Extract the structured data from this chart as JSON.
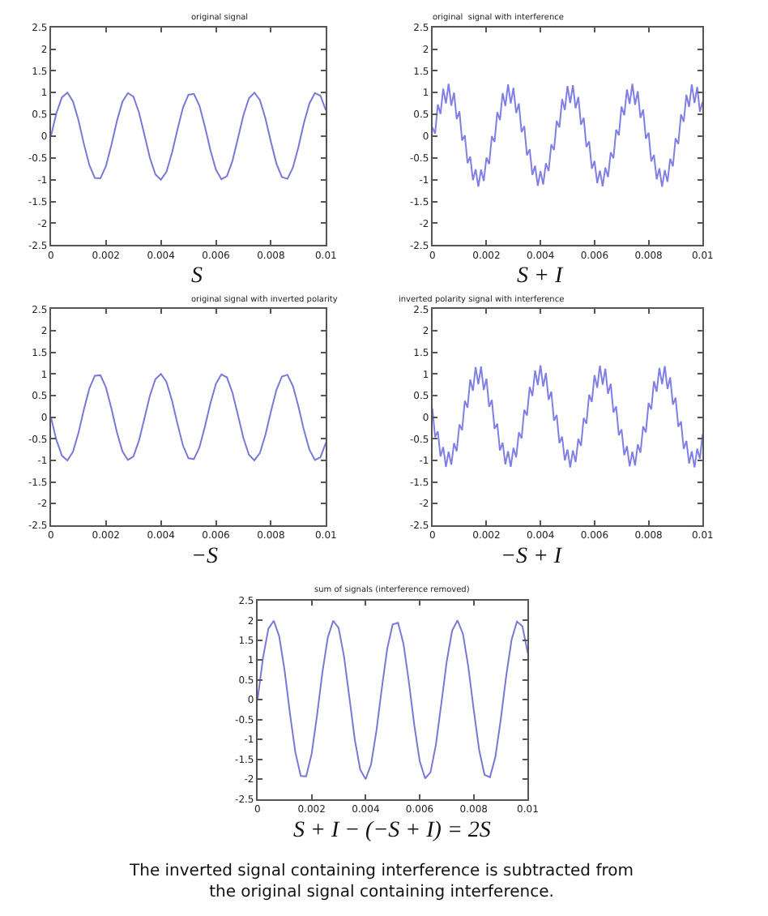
{
  "chart_data": [
    {
      "type": "line",
      "title": "original signal",
      "xlabel": "S",
      "xlim": [
        0,
        0.01
      ],
      "ylim": [
        -2.5,
        2.5
      ],
      "xticks": [
        0,
        0.002,
        0.004,
        0.006,
        0.008,
        0.01
      ],
      "yticks": [
        -2.5,
        -2,
        -1.5,
        -1,
        -0.5,
        0,
        0.5,
        1,
        1.5,
        2,
        2.5
      ],
      "x": [
        0,
        0.0002,
        0.0004,
        0.0006,
        0.0008,
        0.001,
        0.0012,
        0.0014,
        0.0016,
        0.0018,
        0.002,
        0.0022,
        0.0024,
        0.0026,
        0.0028,
        0.003,
        0.0032,
        0.0034,
        0.0036,
        0.0038,
        0.004,
        0.0042,
        0.0044,
        0.0046,
        0.0048,
        0.005,
        0.0052,
        0.0054,
        0.0056,
        0.0058,
        0.006,
        0.0062,
        0.0064,
        0.0066,
        0.0068,
        0.007,
        0.0072,
        0.0074,
        0.0076,
        0.0078,
        0.008,
        0.0082,
        0.0084,
        0.0086,
        0.0088,
        0.009,
        0.0092,
        0.0094,
        0.0096,
        0.0098,
        0.01
      ],
      "series": [
        {
          "color": "#7878d8",
          "values": [
            0,
            0.53,
            0.89,
            1.0,
            0.8,
            0.37,
            -0.18,
            -0.67,
            -0.96,
            -0.97,
            -0.69,
            -0.2,
            0.35,
            0.79,
            0.99,
            0.91,
            0.55,
            0.03,
            -0.5,
            -0.88,
            -1.0,
            -0.82,
            -0.39,
            0.15,
            0.65,
            0.95,
            0.97,
            0.7,
            0.22,
            -0.32,
            -0.77,
            -0.99,
            -0.92,
            -0.57,
            -0.05,
            0.48,
            0.87,
            1.0,
            0.83,
            0.41,
            -0.13,
            -0.63,
            -0.94,
            -0.98,
            -0.72,
            -0.25,
            0.3,
            0.75,
            0.99,
            0.93,
            0.59
          ]
        }
      ]
    },
    {
      "type": "line",
      "title": "original  signal with interference",
      "xlabel": "S + I",
      "xlim": [
        0,
        0.01
      ],
      "ylim": [
        -2.5,
        2.5
      ],
      "xticks": [
        0,
        0.002,
        0.004,
        0.006,
        0.008,
        0.01
      ],
      "yticks": [
        -2.5,
        -2,
        -1.5,
        -1,
        -0.5,
        0,
        0.5,
        1,
        1.5,
        2,
        2.5
      ],
      "x": [
        0,
        0.0001,
        0.0002,
        0.0003,
        0.0004,
        0.0005,
        0.0006,
        0.0007,
        0.0008,
        0.0009,
        0.001,
        0.0011,
        0.0012,
        0.0013,
        0.0014,
        0.0015,
        0.0016,
        0.0017,
        0.0018,
        0.0019,
        0.002,
        0.0021,
        0.0022,
        0.0023,
        0.0024,
        0.0025,
        0.0026,
        0.0027,
        0.0028,
        0.0029,
        0.003,
        0.0031,
        0.0032,
        0.0033,
        0.0034,
        0.0035,
        0.0036,
        0.0037,
        0.0038,
        0.0039,
        0.004,
        0.0041,
        0.0042,
        0.0043,
        0.0044,
        0.0045,
        0.0046,
        0.0047,
        0.0048,
        0.0049,
        0.005,
        0.0051,
        0.0052,
        0.0053,
        0.0054,
        0.0055,
        0.0056,
        0.0057,
        0.0058,
        0.0059,
        0.006,
        0.0061,
        0.0062,
        0.0063,
        0.0064,
        0.0065,
        0.0066,
        0.0067,
        0.0068,
        0.0069,
        0.007,
        0.0071,
        0.0072,
        0.0073,
        0.0074,
        0.0075,
        0.0076,
        0.0077,
        0.0078,
        0.0079,
        0.008,
        0.0081,
        0.0082,
        0.0083,
        0.0084,
        0.0085,
        0.0086,
        0.0087,
        0.0088,
        0.0089,
        0.009,
        0.0091,
        0.0092,
        0.0093,
        0.0094,
        0.0095,
        0.0096,
        0.0097,
        0.0098,
        0.0099,
        0.01
      ],
      "series": [
        {
          "color": "#7f7fe6",
          "values": [
            0.2,
            0.06,
            0.73,
            0.51,
            1.09,
            0.75,
            1.2,
            0.7,
            1.0,
            0.39,
            0.57,
            -0.1,
            0.02,
            -0.62,
            -0.47,
            -1.01,
            -0.76,
            -1.16,
            -0.77,
            -1.03,
            -0.49,
            -0.64,
            0.0,
            -0.13,
            0.55,
            0.37,
            0.99,
            0.69,
            1.19,
            0.75,
            1.11,
            0.53,
            0.75,
            0.09,
            0.23,
            -0.44,
            -0.3,
            -0.89,
            -0.68,
            -1.14,
            -0.8,
            -1.11,
            -0.62,
            -0.8,
            -0.19,
            -0.32,
            0.35,
            0.2,
            0.85,
            0.6,
            1.15,
            0.76,
            1.17,
            0.64,
            0.9,
            0.26,
            0.42,
            -0.25,
            -0.12,
            -0.75,
            -0.57,
            -1.08,
            -0.79,
            -1.15,
            -0.72,
            -0.94,
            -0.37,
            -0.51,
            0.15,
            0.02,
            0.68,
            0.48,
            1.07,
            0.74,
            1.2,
            0.72,
            1.03,
            0.42,
            0.61,
            -0.06,
            0.08,
            -0.58,
            -0.43,
            -0.99,
            -0.74,
            -1.16,
            -0.78,
            -1.05,
            -0.52,
            -0.69,
            -0.05,
            -0.18,
            0.5,
            0.33,
            0.95,
            0.67,
            1.19,
            0.76,
            1.13,
            0.56,
            0.79
          ]
        }
      ]
    },
    {
      "type": "line",
      "title": "original signal with inverted polarity",
      "xlabel": "−S",
      "xlim": [
        0,
        0.01
      ],
      "ylim": [
        -2.5,
        2.5
      ],
      "xticks": [
        0,
        0.002,
        0.004,
        0.006,
        0.008,
        0.01
      ],
      "yticks": [
        -2.5,
        -2,
        -1.5,
        -1,
        -0.5,
        0,
        0.5,
        1,
        1.5,
        2,
        2.5
      ],
      "x": [
        0,
        0.0002,
        0.0004,
        0.0006,
        0.0008,
        0.001,
        0.0012,
        0.0014,
        0.0016,
        0.0018,
        0.002,
        0.0022,
        0.0024,
        0.0026,
        0.0028,
        0.003,
        0.0032,
        0.0034,
        0.0036,
        0.0038,
        0.004,
        0.0042,
        0.0044,
        0.0046,
        0.0048,
        0.005,
        0.0052,
        0.0054,
        0.0056,
        0.0058,
        0.006,
        0.0062,
        0.0064,
        0.0066,
        0.0068,
        0.007,
        0.0072,
        0.0074,
        0.0076,
        0.0078,
        0.008,
        0.0082,
        0.0084,
        0.0086,
        0.0088,
        0.009,
        0.0092,
        0.0094,
        0.0096,
        0.0098,
        0.01
      ],
      "series": [
        {
          "color": "#7878d8",
          "values": [
            0,
            -0.53,
            -0.89,
            -1.0,
            -0.8,
            -0.37,
            0.18,
            0.67,
            0.96,
            0.97,
            0.69,
            0.2,
            -0.35,
            -0.79,
            -0.99,
            -0.91,
            -0.55,
            -0.03,
            0.5,
            0.88,
            1.0,
            0.82,
            0.39,
            -0.15,
            -0.65,
            -0.95,
            -0.97,
            -0.7,
            -0.22,
            0.32,
            0.77,
            0.99,
            0.92,
            0.57,
            0.05,
            -0.48,
            -0.87,
            -1.0,
            -0.83,
            -0.41,
            0.13,
            0.63,
            0.94,
            0.98,
            0.72,
            0.25,
            -0.3,
            -0.75,
            -0.99,
            -0.93,
            -0.59
          ]
        }
      ]
    },
    {
      "type": "line",
      "title": "inverted polarity signal with interference",
      "xlabel": "−S + I",
      "xlim": [
        0,
        0.01
      ],
      "ylim": [
        -2.5,
        2.5
      ],
      "xticks": [
        0,
        0.002,
        0.004,
        0.006,
        0.008,
        0.01
      ],
      "yticks": [
        -2.5,
        -2,
        -1.5,
        -1,
        -0.5,
        0,
        0.5,
        1,
        1.5,
        2,
        2.5
      ],
      "x": [
        0,
        0.0001,
        0.0002,
        0.0003,
        0.0004,
        0.0005,
        0.0006,
        0.0007,
        0.0008,
        0.0009,
        0.001,
        0.0011,
        0.0012,
        0.0013,
        0.0014,
        0.0015,
        0.0016,
        0.0017,
        0.0018,
        0.0019,
        0.002,
        0.0021,
        0.0022,
        0.0023,
        0.0024,
        0.0025,
        0.0026,
        0.0027,
        0.0028,
        0.0029,
        0.003,
        0.0031,
        0.0032,
        0.0033,
        0.0034,
        0.0035,
        0.0036,
        0.0037,
        0.0038,
        0.0039,
        0.004,
        0.0041,
        0.0042,
        0.0043,
        0.0044,
        0.0045,
        0.0046,
        0.0047,
        0.0048,
        0.0049,
        0.005,
        0.0051,
        0.0052,
        0.0053,
        0.0054,
        0.0055,
        0.0056,
        0.0057,
        0.0058,
        0.0059,
        0.006,
        0.0061,
        0.0062,
        0.0063,
        0.0064,
        0.0065,
        0.0066,
        0.0067,
        0.0068,
        0.0069,
        0.007,
        0.0071,
        0.0072,
        0.0073,
        0.0074,
        0.0075,
        0.0076,
        0.0077,
        0.0078,
        0.0079,
        0.008,
        0.0081,
        0.0082,
        0.0083,
        0.0084,
        0.0085,
        0.0086,
        0.0087,
        0.0088,
        0.0089,
        0.009,
        0.0091,
        0.0092,
        0.0093,
        0.0094,
        0.0095,
        0.0096,
        0.0097,
        0.0098,
        0.0099,
        0.01
      ],
      "series": [
        {
          "color": "#7f7fe6",
          "values": [
            0.2,
            -0.46,
            -0.33,
            -0.91,
            -0.69,
            -1.15,
            -0.8,
            -1.1,
            -0.6,
            -0.79,
            -0.17,
            -0.3,
            0.38,
            0.22,
            0.87,
            0.61,
            1.16,
            0.76,
            1.17,
            0.63,
            0.89,
            0.24,
            0.4,
            -0.27,
            -0.15,
            -0.77,
            -0.59,
            -1.09,
            -0.79,
            -1.15,
            -0.71,
            -0.93,
            -0.35,
            -0.49,
            0.17,
            0.04,
            0.7,
            0.49,
            1.08,
            0.74,
            1.2,
            0.71,
            1.02,
            0.4,
            0.59,
            -0.08,
            0.05,
            -0.6,
            -0.45,
            -1.0,
            -0.75,
            -1.16,
            -0.77,
            -1.04,
            -0.5,
            -0.66,
            -0.02,
            -0.15,
            0.52,
            0.35,
            0.97,
            0.68,
            1.19,
            0.75,
            1.12,
            0.54,
            0.77,
            0.11,
            0.25,
            -0.42,
            -0.28,
            -0.88,
            -0.67,
            -1.14,
            -0.8,
            -1.12,
            -0.63,
            -0.82,
            -0.21,
            -0.35,
            0.33,
            0.18,
            0.83,
            0.59,
            1.14,
            0.76,
            1.18,
            0.65,
            0.92,
            0.29,
            0.45,
            -0.22,
            -0.1,
            -0.73,
            -0.55,
            -1.07,
            -0.79,
            -1.16,
            -0.73,
            -0.96,
            -0.39
          ]
        }
      ]
    },
    {
      "type": "line",
      "title": "sum of signals (interference removed)",
      "xlabel": "S + I − (−S + I) = 2S",
      "xlim": [
        0,
        0.01
      ],
      "ylim": [
        -2.5,
        2.5
      ],
      "xticks": [
        0,
        0.002,
        0.004,
        0.006,
        0.008,
        0.01
      ],
      "yticks": [
        -2.5,
        -2,
        -1.5,
        -1,
        -0.5,
        0,
        0.5,
        1,
        1.5,
        2,
        2.5
      ],
      "annotations": [
        "The inverted signal containing interference is subtracted from\nthe original signal containing interference."
      ],
      "x": [
        0,
        0.0002,
        0.0004,
        0.0006,
        0.0008,
        0.001,
        0.0012,
        0.0014,
        0.0016,
        0.0018,
        0.002,
        0.0022,
        0.0024,
        0.0026,
        0.0028,
        0.003,
        0.0032,
        0.0034,
        0.0036,
        0.0038,
        0.004,
        0.0042,
        0.0044,
        0.0046,
        0.0048,
        0.005,
        0.0052,
        0.0054,
        0.0056,
        0.0058,
        0.006,
        0.0062,
        0.0064,
        0.0066,
        0.0068,
        0.007,
        0.0072,
        0.0074,
        0.0076,
        0.0078,
        0.008,
        0.0082,
        0.0084,
        0.0086,
        0.0088,
        0.009,
        0.0092,
        0.0094,
        0.0096,
        0.0098,
        0.01
      ],
      "series": [
        {
          "color": "#7878d8",
          "values": [
            0,
            1.05,
            1.79,
            1.99,
            1.6,
            0.74,
            -0.35,
            -1.33,
            -1.92,
            -1.93,
            -1.37,
            -0.4,
            0.69,
            1.57,
            1.99,
            1.81,
            1.09,
            0.05,
            -1.01,
            -1.76,
            -2.0,
            -1.63,
            -0.78,
            0.3,
            1.29,
            1.9,
            1.94,
            1.41,
            0.45,
            -0.64,
            -1.54,
            -1.98,
            -1.83,
            -1.13,
            -0.1,
            0.96,
            1.74,
            2.0,
            1.66,
            0.83,
            -0.25,
            -1.26,
            -1.89,
            -1.95,
            -1.44,
            -0.5,
            0.59,
            1.51,
            1.97,
            1.85,
            1.18
          ]
        }
      ]
    }
  ]
}
